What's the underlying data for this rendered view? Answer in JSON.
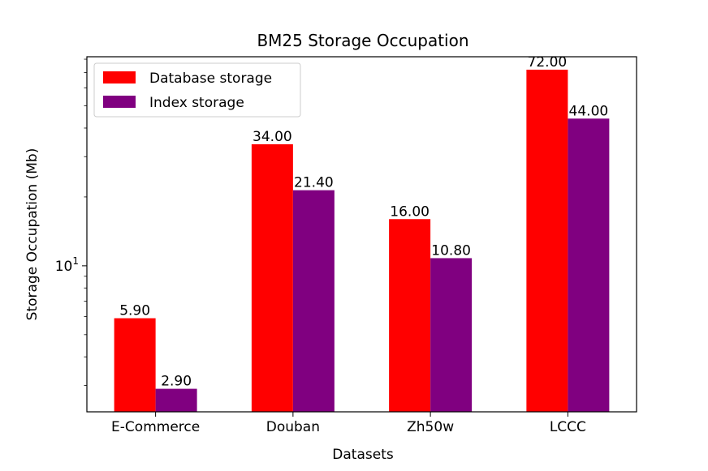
{
  "chart_data": {
    "type": "bar",
    "title": "BM25 Storage Occupation",
    "xlabel": "Datasets",
    "ylabel": "Storage Occupation (Mb)",
    "yscale": "log",
    "ylim": [
      2.3,
      82
    ],
    "y_tick_label": {
      "base": "10",
      "exponent": "1"
    },
    "categories": [
      "E-Commerce",
      "Douban",
      "Zh50w",
      "LCCC"
    ],
    "series": [
      {
        "name": "Database storage",
        "color": "#ff0000",
        "values": [
          5.9,
          34.0,
          16.0,
          72.0
        ],
        "labels": [
          "5.90",
          "34.00",
          "16.00",
          "72.00"
        ]
      },
      {
        "name": "Index storage",
        "color": "#800080",
        "values": [
          2.9,
          21.4,
          10.8,
          44.0
        ],
        "labels": [
          "2.90",
          "21.40",
          "10.80",
          "44.00"
        ]
      }
    ],
    "legend_position": "top-left",
    "grid": false
  }
}
